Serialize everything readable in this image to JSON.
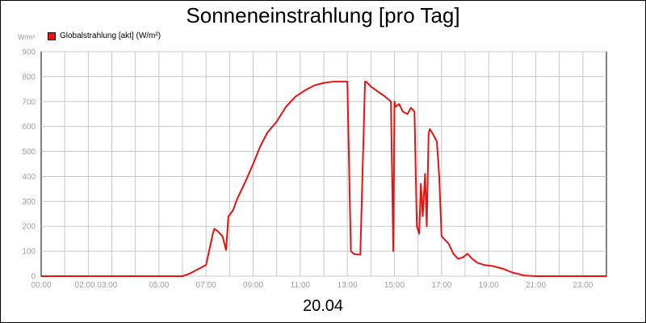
{
  "date_label": "20.04",
  "chart_data": {
    "type": "line",
    "title": "Sonneneinstrahlung [pro Tag]",
    "ylabel": "W/m²",
    "ylim": [
      0,
      900
    ],
    "xlim": [
      0,
      24
    ],
    "grid": true,
    "legend_position": "top-left",
    "y_ticks": [
      {
        "value": 0,
        "label": "0"
      },
      {
        "value": 100,
        "label": "100"
      },
      {
        "value": 200,
        "label": "200"
      },
      {
        "value": 300,
        "label": "300"
      },
      {
        "value": 400,
        "label": "400"
      },
      {
        "value": 500,
        "label": "500"
      },
      {
        "value": 600,
        "label": "600"
      },
      {
        "value": 700,
        "label": "700"
      },
      {
        "value": 800,
        "label": "800"
      },
      {
        "value": 900,
        "label": "900"
      }
    ],
    "x_ticks": [
      {
        "value": 0,
        "label": "00:00"
      },
      {
        "value": 2.33,
        "label": "02:00 03:00"
      },
      {
        "value": 5,
        "label": "05:00"
      },
      {
        "value": 7,
        "label": "07:00"
      },
      {
        "value": 9,
        "label": "09:00"
      },
      {
        "value": 11,
        "label": "11:00"
      },
      {
        "value": 13,
        "label": "13:00"
      },
      {
        "value": 15,
        "label": "15:00"
      },
      {
        "value": 17,
        "label": "17:00"
      },
      {
        "value": 19,
        "label": "19:00"
      },
      {
        "value": 21,
        "label": "21:00"
      },
      {
        "value": 23,
        "label": "23:00"
      }
    ],
    "series": [
      {
        "name": "Globalstrahlung [akt] (W/m²)",
        "color": "#e81212",
        "x": [
          0,
          6.0,
          6.3,
          6.7,
          7.0,
          7.3,
          7.35,
          7.5,
          7.7,
          7.85,
          7.95,
          8.0,
          8.15,
          8.3,
          8.5,
          8.7,
          9.0,
          9.3,
          9.6,
          10.0,
          10.4,
          10.8,
          11.2,
          11.6,
          12.0,
          12.4,
          12.8,
          13.0,
          13.15,
          13.3,
          13.35,
          13.55,
          13.75,
          13.8,
          14.0,
          14.3,
          14.6,
          14.85,
          14.95,
          15.0,
          15.05,
          15.2,
          15.35,
          15.55,
          15.7,
          15.85,
          15.95,
          16.05,
          16.12,
          16.2,
          16.3,
          16.37,
          16.45,
          16.5,
          16.6,
          16.8,
          16.9,
          17.0,
          17.1,
          17.3,
          17.5,
          17.7,
          17.9,
          18.1,
          18.3,
          18.5,
          18.8,
          19.2,
          19.6,
          20.0,
          20.5,
          21.0,
          24.0
        ],
        "values": [
          0,
          0,
          10,
          30,
          45,
          175,
          190,
          180,
          160,
          105,
          240,
          245,
          265,
          305,
          345,
          385,
          450,
          520,
          575,
          620,
          680,
          720,
          745,
          765,
          775,
          780,
          780,
          780,
          100,
          88,
          88,
          86,
          780,
          780,
          760,
          740,
          720,
          700,
          100,
          700,
          680,
          690,
          660,
          650,
          675,
          660,
          200,
          170,
          370,
          240,
          410,
          200,
          570,
          590,
          575,
          540,
          400,
          160,
          150,
          130,
          90,
          70,
          75,
          90,
          70,
          55,
          45,
          40,
          30,
          15,
          3,
          0,
          0
        ]
      }
    ]
  }
}
